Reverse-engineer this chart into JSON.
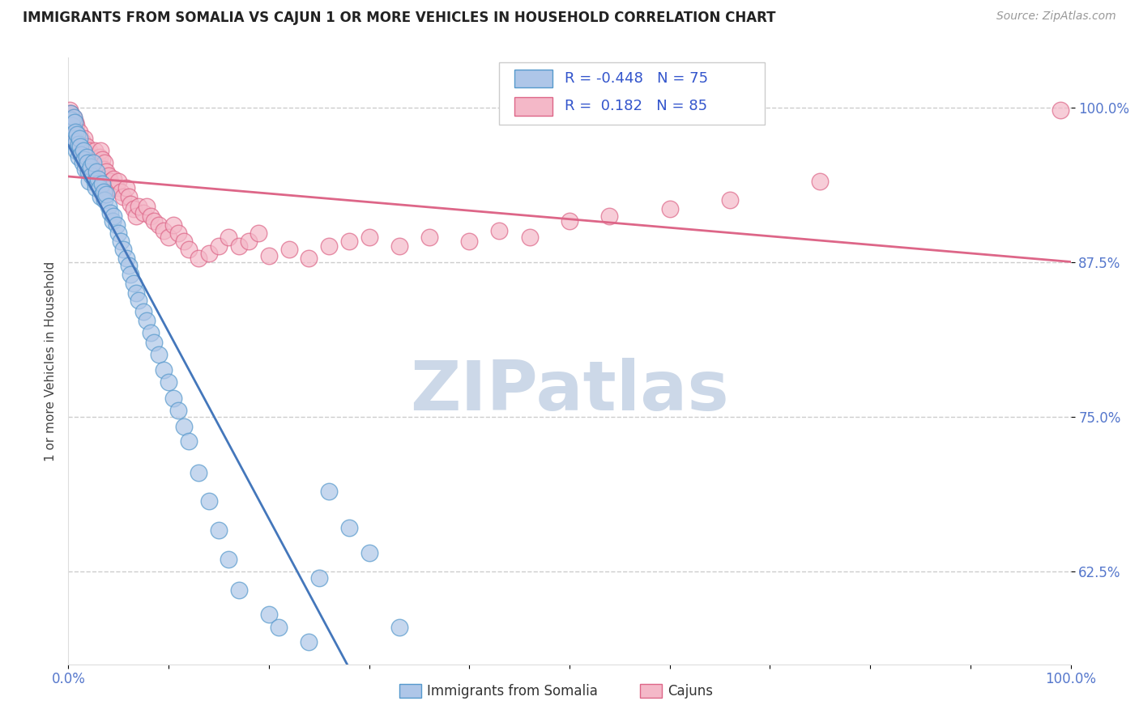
{
  "title": "IMMIGRANTS FROM SOMALIA VS CAJUN 1 OR MORE VEHICLES IN HOUSEHOLD CORRELATION CHART",
  "source_text": "Source: ZipAtlas.com",
  "ylabel": "1 or more Vehicles in Household",
  "x_min": 0.0,
  "x_max": 1.0,
  "y_min": 0.55,
  "y_max": 1.04,
  "y_ticks": [
    0.625,
    0.75,
    0.875,
    1.0
  ],
  "y_tick_labels": [
    "62.5%",
    "75.0%",
    "87.5%",
    "100.0%"
  ],
  "x_ticks": [
    0.0,
    0.1,
    0.2,
    0.3,
    0.4,
    0.5,
    0.6,
    0.7,
    0.8,
    0.9,
    1.0
  ],
  "x_tick_labels": [
    "0.0%",
    "",
    "",
    "",
    "",
    "",
    "",
    "",
    "",
    "",
    "100.0%"
  ],
  "grid_color": "#cccccc",
  "background_color": "#ffffff",
  "somalia_color": "#aec6e8",
  "cajun_color": "#f4b8c8",
  "somalia_edge_color": "#5599cc",
  "cajun_edge_color": "#dd6688",
  "somalia_line_color": "#4477bb",
  "cajun_line_color": "#dd6688",
  "r_somalia": -0.448,
  "n_somalia": 75,
  "r_cajun": 0.182,
  "n_cajun": 85,
  "legend_r_color": "#3355cc",
  "watermark_color": "#ccd8e8",
  "tick_color": "#5577cc",
  "somalia_x": [
    0.002,
    0.003,
    0.004,
    0.005,
    0.006,
    0.006,
    0.007,
    0.008,
    0.008,
    0.009,
    0.01,
    0.01,
    0.011,
    0.012,
    0.013,
    0.014,
    0.015,
    0.016,
    0.017,
    0.018,
    0.019,
    0.02,
    0.021,
    0.022,
    0.023,
    0.025,
    0.026,
    0.027,
    0.028,
    0.029,
    0.03,
    0.031,
    0.032,
    0.034,
    0.035,
    0.036,
    0.038,
    0.04,
    0.042,
    0.044,
    0.045,
    0.048,
    0.05,
    0.052,
    0.055,
    0.058,
    0.06,
    0.062,
    0.065,
    0.068,
    0.07,
    0.075,
    0.078,
    0.082,
    0.085,
    0.09,
    0.095,
    0.1,
    0.105,
    0.11,
    0.115,
    0.12,
    0.13,
    0.14,
    0.15,
    0.16,
    0.17,
    0.2,
    0.21,
    0.24,
    0.25,
    0.26,
    0.28,
    0.3,
    0.33
  ],
  "somalia_y": [
    0.995,
    0.99,
    0.985,
    0.992,
    0.988,
    0.975,
    0.98,
    0.972,
    0.965,
    0.978,
    0.97,
    0.96,
    0.975,
    0.968,
    0.962,
    0.955,
    0.965,
    0.958,
    0.95,
    0.96,
    0.955,
    0.948,
    0.94,
    0.952,
    0.945,
    0.955,
    0.94,
    0.935,
    0.948,
    0.938,
    0.942,
    0.935,
    0.928,
    0.938,
    0.932,
    0.925,
    0.93,
    0.92,
    0.915,
    0.908,
    0.912,
    0.905,
    0.898,
    0.892,
    0.885,
    0.878,
    0.872,
    0.865,
    0.858,
    0.85,
    0.844,
    0.835,
    0.828,
    0.818,
    0.81,
    0.8,
    0.788,
    0.778,
    0.765,
    0.755,
    0.742,
    0.73,
    0.705,
    0.682,
    0.658,
    0.635,
    0.61,
    0.59,
    0.58,
    0.568,
    0.62,
    0.69,
    0.66,
    0.64,
    0.58
  ],
  "cajun_x": [
    0.001,
    0.002,
    0.003,
    0.004,
    0.005,
    0.005,
    0.006,
    0.007,
    0.008,
    0.008,
    0.009,
    0.01,
    0.011,
    0.012,
    0.013,
    0.014,
    0.015,
    0.016,
    0.017,
    0.018,
    0.019,
    0.02,
    0.021,
    0.022,
    0.023,
    0.025,
    0.026,
    0.027,
    0.028,
    0.03,
    0.031,
    0.032,
    0.034,
    0.035,
    0.036,
    0.038,
    0.04,
    0.042,
    0.044,
    0.045,
    0.048,
    0.05,
    0.052,
    0.055,
    0.058,
    0.06,
    0.062,
    0.065,
    0.068,
    0.07,
    0.075,
    0.078,
    0.082,
    0.085,
    0.09,
    0.095,
    0.1,
    0.105,
    0.11,
    0.115,
    0.12,
    0.13,
    0.14,
    0.15,
    0.16,
    0.17,
    0.18,
    0.19,
    0.2,
    0.22,
    0.24,
    0.26,
    0.28,
    0.3,
    0.33,
    0.36,
    0.4,
    0.43,
    0.46,
    0.5,
    0.54,
    0.6,
    0.66,
    0.75,
    0.99
  ],
  "cajun_y": [
    0.998,
    0.995,
    0.99,
    0.988,
    0.985,
    0.992,
    0.98,
    0.988,
    0.975,
    0.985,
    0.978,
    0.972,
    0.98,
    0.975,
    0.968,
    0.972,
    0.965,
    0.975,
    0.96,
    0.968,
    0.962,
    0.958,
    0.965,
    0.955,
    0.96,
    0.955,
    0.965,
    0.958,
    0.95,
    0.955,
    0.96,
    0.965,
    0.958,
    0.95,
    0.955,
    0.948,
    0.945,
    0.94,
    0.935,
    0.942,
    0.935,
    0.94,
    0.932,
    0.928,
    0.935,
    0.928,
    0.922,
    0.918,
    0.912,
    0.92,
    0.915,
    0.92,
    0.912,
    0.908,
    0.905,
    0.9,
    0.895,
    0.905,
    0.898,
    0.892,
    0.885,
    0.878,
    0.882,
    0.888,
    0.895,
    0.888,
    0.892,
    0.898,
    0.88,
    0.885,
    0.878,
    0.888,
    0.892,
    0.895,
    0.888,
    0.895,
    0.892,
    0.9,
    0.895,
    0.908,
    0.912,
    0.918,
    0.925,
    0.94,
    0.998
  ]
}
